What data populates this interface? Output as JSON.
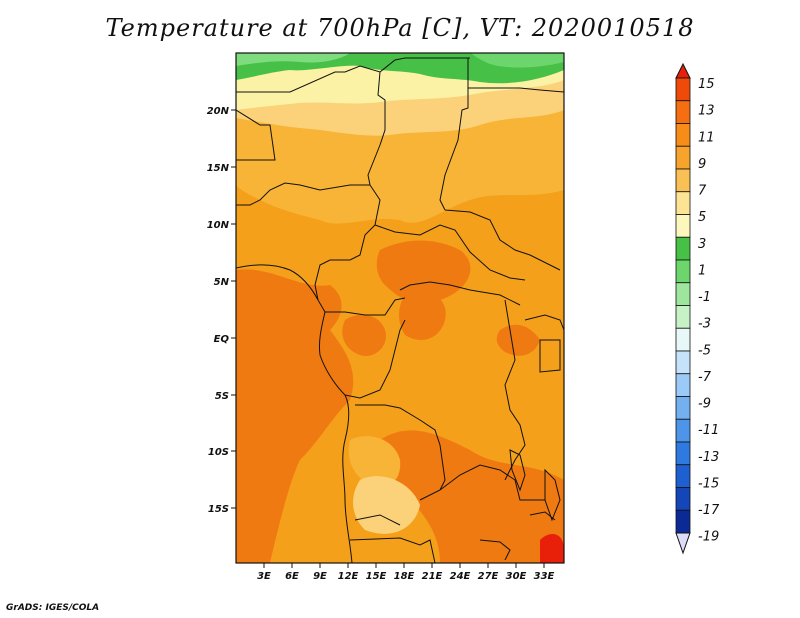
{
  "title": "Temperature at 700hPa [C], VT: 2020010518",
  "credit": "GrADS: IGES/COLA",
  "lat_ticks": [
    "20N",
    "15N",
    "10N",
    "5N",
    "EQ",
    "5S",
    "10S",
    "15S"
  ],
  "lon_ticks": [
    "3E",
    "6E",
    "9E",
    "12E",
    "15E",
    "18E",
    "21E",
    "24E",
    "27E",
    "30E",
    "33E"
  ],
  "colorbar": {
    "labels": [
      "15",
      "13",
      "11",
      "9",
      "7",
      "5",
      "3",
      "1",
      "-1",
      "-3",
      "-5",
      "-7",
      "-9",
      "-11",
      "-13",
      "-15",
      "-17",
      "-19"
    ],
    "colors": [
      "#e8200a",
      "#f04a0a",
      "#f56e12",
      "#f78c18",
      "#f7a32c",
      "#f9c055",
      "#fde495",
      "#fbf7bd",
      "#46c046",
      "#6cd66c",
      "#9ee69e",
      "#c6f2c6",
      "#e8f8f8",
      "#c6e2fa",
      "#9ccaf6",
      "#74b0f0",
      "#4e95ea",
      "#2e7ae0",
      "#1e60d2",
      "#1446b8",
      "#0c2a96",
      "#0a1466"
    ]
  }
}
